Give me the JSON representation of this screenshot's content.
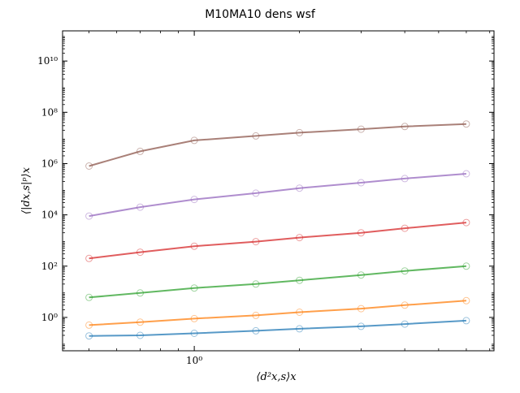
{
  "chart_data": {
    "type": "scatter",
    "title": "M10MA10 dens wsf",
    "xlabel": "⟨d²x,s⟩x",
    "ylabel": "⟨|dx,s|ᵖ⟩x",
    "x_scale": "log",
    "y_scale": "log",
    "xlim": [
      0.42,
      7.2
    ],
    "ylim": [
      0.05,
      150000000000
    ],
    "x_ticks": [
      {
        "value": 1,
        "label": "10⁰"
      }
    ],
    "y_ticks": [
      {
        "value": 1,
        "label": "10⁰"
      },
      {
        "value": 100,
        "label": "10²"
      },
      {
        "value": 10000,
        "label": "10⁴"
      },
      {
        "value": 1000000,
        "label": "10⁶"
      },
      {
        "value": 100000000,
        "label": "10⁸"
      },
      {
        "value": 10000000000,
        "label": "10¹⁰"
      }
    ],
    "grid": false,
    "legend": "none",
    "series": [
      {
        "color": "#1f77b4",
        "x": [
          0.5,
          0.7,
          1.0,
          1.5,
          2.0,
          3.0,
          4.0,
          6.0
        ],
        "values": [
          0.19,
          0.2,
          0.24,
          0.3,
          0.36,
          0.45,
          0.55,
          0.75
        ]
      },
      {
        "color": "#ff7f0e",
        "x": [
          0.5,
          0.7,
          1.0,
          1.5,
          2.0,
          3.0,
          4.0,
          6.0
        ],
        "values": [
          0.5,
          0.65,
          0.9,
          1.2,
          1.6,
          2.2,
          3.0,
          4.5
        ]
      },
      {
        "color": "#2ca02c",
        "x": [
          0.5,
          0.7,
          1.0,
          1.5,
          2.0,
          3.0,
          4.0,
          6.0
        ],
        "values": [
          6,
          9,
          14,
          20,
          28,
          45,
          65,
          100
        ]
      },
      {
        "color": "#d62728",
        "x": [
          0.5,
          0.7,
          1.0,
          1.5,
          2.0,
          3.0,
          4.0,
          6.0
        ],
        "values": [
          200,
          350,
          600,
          900,
          1300,
          2000,
          3000,
          5000
        ]
      },
      {
        "color": "#9467bd",
        "x": [
          0.5,
          0.7,
          1.0,
          1.5,
          2.0,
          3.0,
          4.0,
          6.0
        ],
        "values": [
          9000,
          20000,
          40000,
          70000,
          110000,
          180000,
          260000,
          400000
        ]
      },
      {
        "color": "#8c564b",
        "x": [
          0.5,
          0.7,
          1.0,
          1.5,
          2.0,
          3.0,
          4.0,
          6.0
        ],
        "values": [
          800000,
          3000000,
          8000000,
          12000000,
          16000000,
          22000000,
          28000000,
          35000000
        ]
      }
    ]
  }
}
